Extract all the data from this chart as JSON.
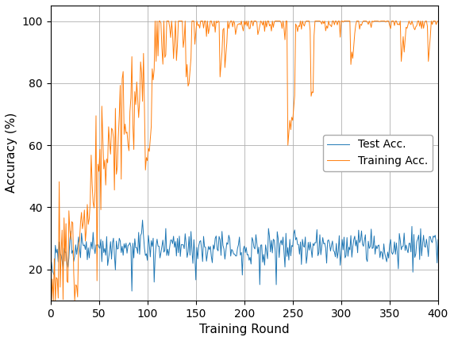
{
  "title": "",
  "xlabel": "Training Round",
  "ylabel": "Accuracy (%)",
  "xlim": [
    0,
    400
  ],
  "ylim": [
    10,
    105
  ],
  "xticks": [
    0,
    50,
    100,
    150,
    200,
    250,
    300,
    350,
    400
  ],
  "yticks": [
    20,
    40,
    60,
    80,
    100
  ],
  "test_color": "#1f77b4",
  "train_color": "#ff7f0e",
  "test_label": "Test Acc.",
  "train_label": "Training Acc.",
  "linewidth": 0.7,
  "figsize": [
    5.72,
    4.3
  ],
  "dpi": 100,
  "grid_color": "#b0b0b0",
  "legend_loc": "center right",
  "n_rounds": 401,
  "seed": 12
}
